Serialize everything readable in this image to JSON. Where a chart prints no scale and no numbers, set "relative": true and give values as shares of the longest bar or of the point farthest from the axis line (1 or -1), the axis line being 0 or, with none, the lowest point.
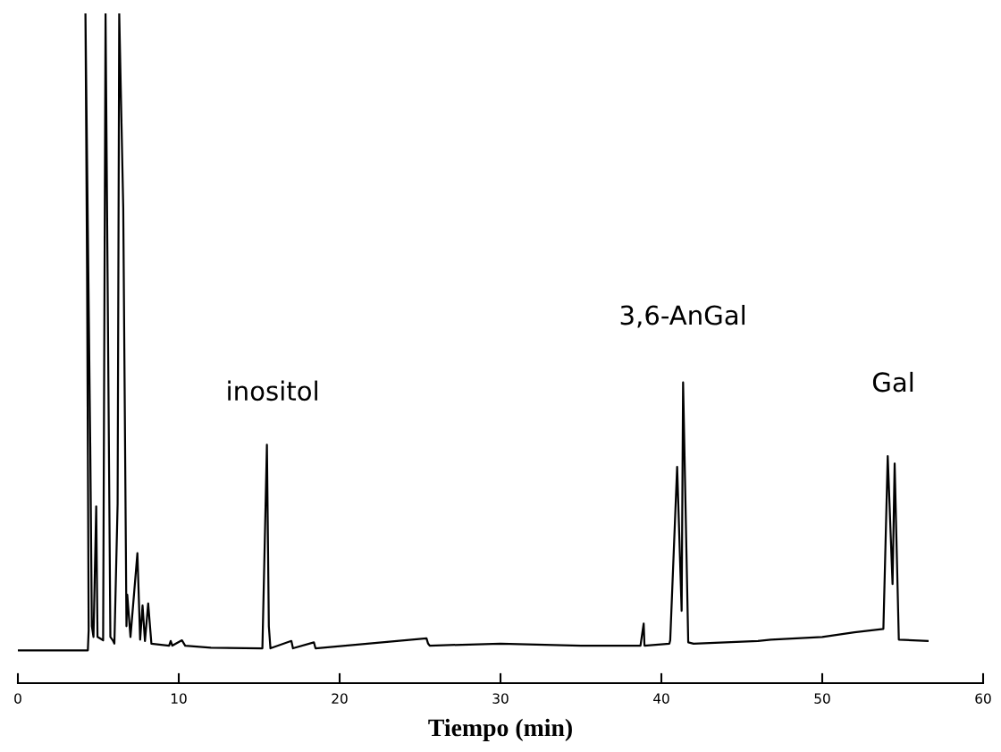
{
  "chart_data": {
    "type": "line",
    "relative": true,
    "xlabel": "Tiempo (min)",
    "xlim": [
      0,
      60
    ],
    "xticks": [
      0,
      10,
      20,
      30,
      40,
      50,
      60
    ],
    "tick_labels": "x",
    "grid": false,
    "legend": false,
    "marker": "none",
    "line_style": "solid",
    "series": [
      {
        "color": "#000000",
        "x": [
          0,
          4.35,
          4.4,
          4.3,
          4.2,
          4.5,
          4.6,
          4.7,
          4.87,
          4.95,
          5.3,
          5.45,
          5.75,
          5.9,
          6.0,
          6.2,
          6.3,
          6.55,
          6.75,
          6.8,
          7.0,
          7.43,
          7.6,
          7.75,
          7.9,
          8.1,
          8.3,
          9.4,
          9.5,
          9.6,
          10.2,
          10.4,
          12,
          15.2,
          15.48,
          15.6,
          15.7,
          17,
          17.1,
          18.4,
          18.5,
          25.4,
          25.5,
          25.6,
          30,
          35,
          38.7,
          38.9,
          38.95,
          40.5,
          40.55,
          40.98,
          41.26,
          41.35,
          41.67,
          42,
          46,
          46.8,
          50,
          52,
          53.8,
          54.07,
          54.37,
          54.5,
          54.76,
          56.55
        ],
        "values": [
          0.049,
          0.049,
          0.079,
          0.619,
          1,
          0.352,
          0.085,
          0.069,
          0.264,
          0.069,
          0.064,
          1,
          0.069,
          0.064,
          0.059,
          0.268,
          1,
          0.709,
          0.085,
          0.132,
          0.069,
          0.194,
          0.065,
          0.116,
          0.063,
          0.119,
          0.059,
          0.056,
          0.063,
          0.056,
          0.064,
          0.056,
          0.053,
          0.052,
          0.356,
          0.085,
          0.052,
          0.063,
          0.052,
          0.061,
          0.052,
          0.067,
          0.059,
          0.056,
          0.059,
          0.056,
          0.056,
          0.089,
          0.056,
          0.059,
          0.064,
          0.323,
          0.108,
          0.449,
          0.061,
          0.059,
          0.063,
          0.065,
          0.069,
          0.076,
          0.081,
          0.339,
          0.148,
          0.328,
          0.065,
          0.063
        ]
      }
    ],
    "annotations": [
      "inositol",
      "3,6-AnGal",
      "Gal"
    ]
  }
}
